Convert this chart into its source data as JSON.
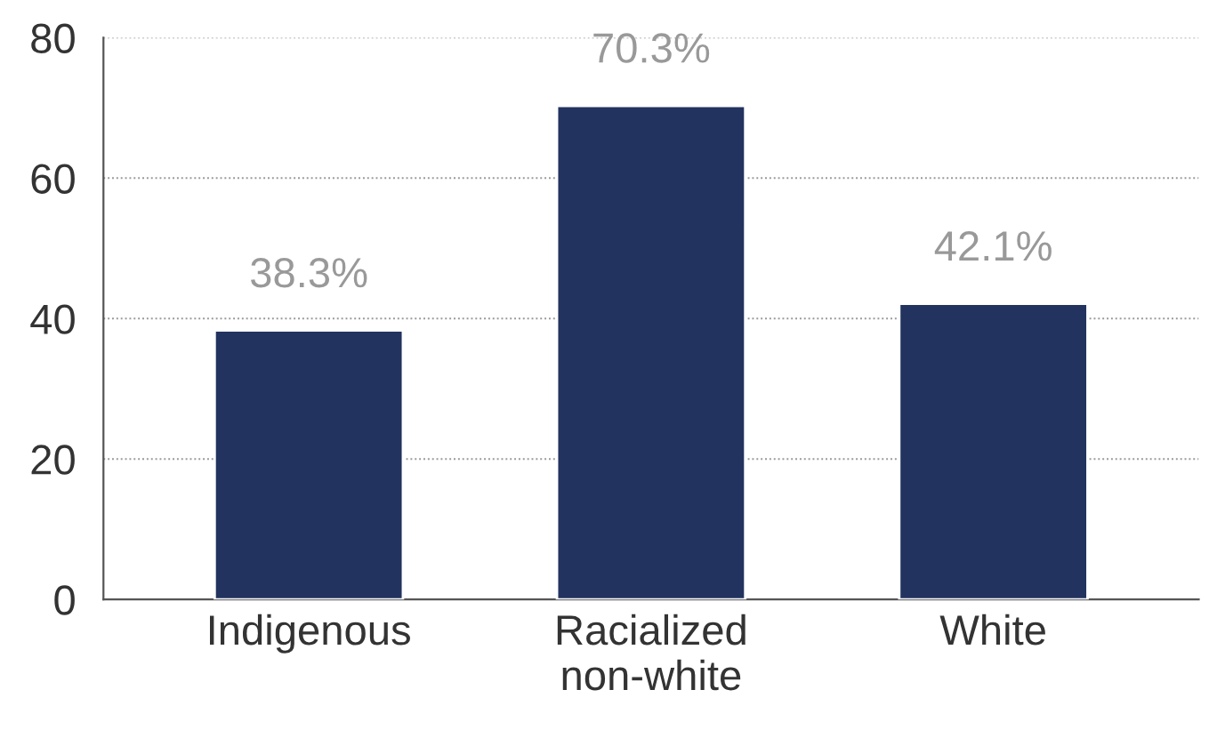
{
  "chart_data": {
    "type": "bar",
    "categories": [
      "Indigenous",
      "Racialized\nnon-white",
      "White"
    ],
    "values": [
      38.3,
      70.3,
      42.1
    ],
    "value_labels": [
      "38.3%",
      "70.3%",
      "42.1%"
    ],
    "color": "#22335f",
    "ylim": [
      0,
      80
    ],
    "yticks": [
      0,
      20,
      40,
      60,
      80
    ],
    "grid": "y"
  }
}
